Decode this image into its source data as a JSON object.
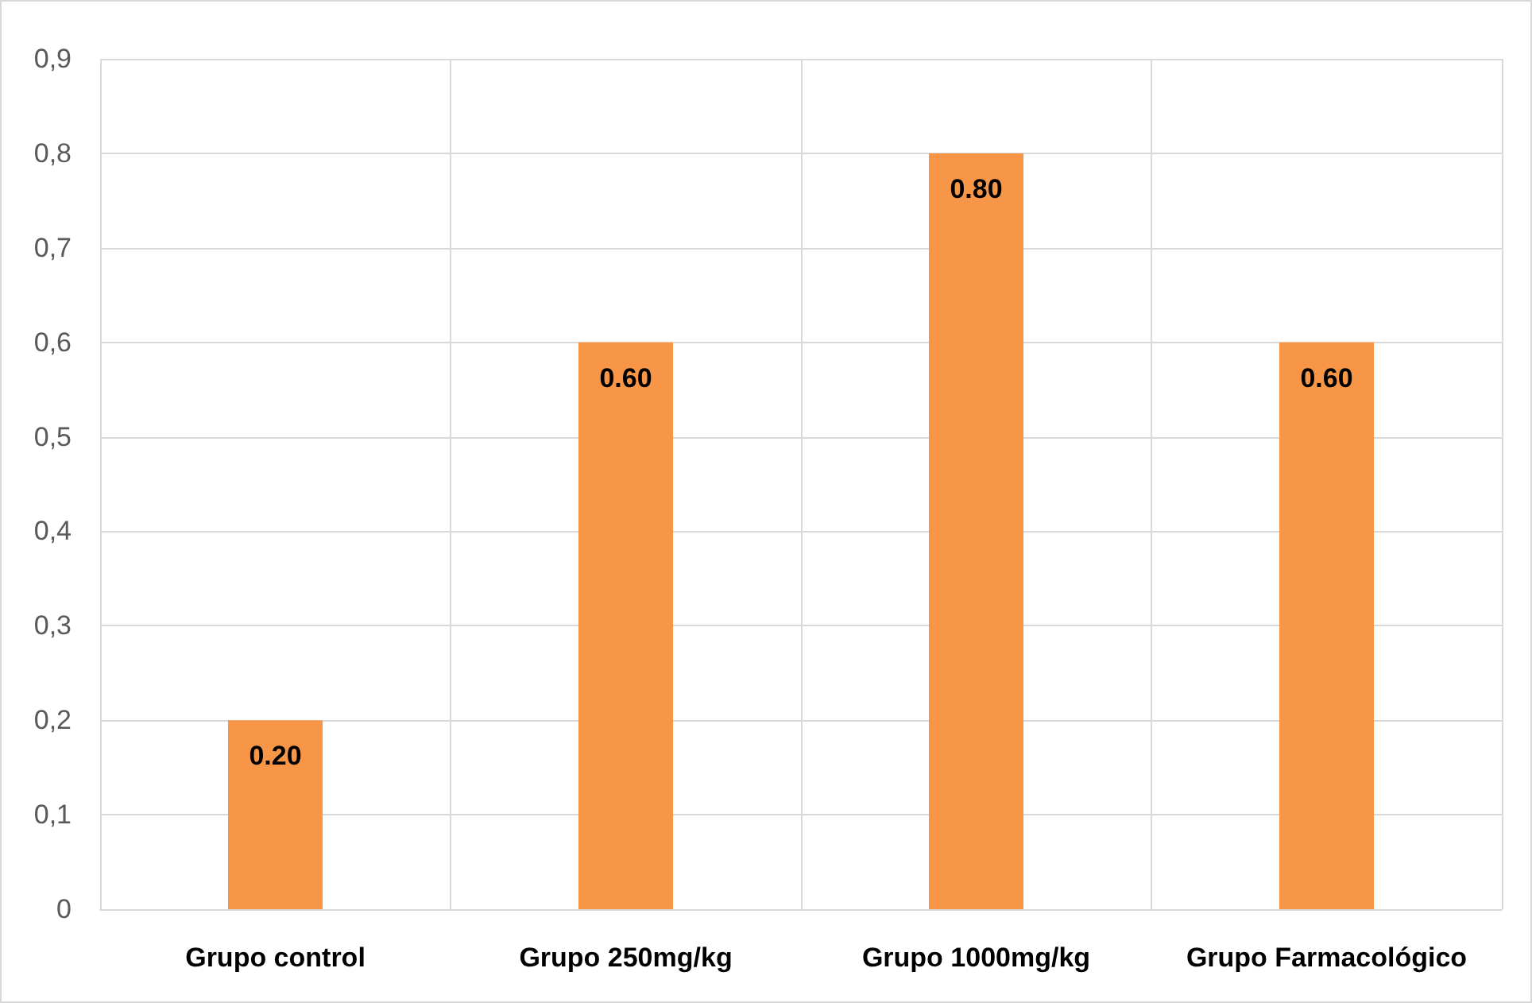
{
  "chart_data": {
    "type": "bar",
    "categories": [
      "Grupo control",
      "Grupo 250mg/kg",
      "Grupo 1000mg/kg",
      "Grupo Farmacológico"
    ],
    "values": [
      0.2,
      0.6,
      0.8,
      0.6
    ],
    "value_labels": [
      "0.20",
      "0.60",
      "0.80",
      "0.60"
    ],
    "color": "#f79646",
    "ylim": [
      0,
      0.9
    ],
    "yticks": [
      {
        "value": 0,
        "label": "0"
      },
      {
        "value": 0.1,
        "label": "0,1"
      },
      {
        "value": 0.2,
        "label": "0,2"
      },
      {
        "value": 0.3,
        "label": "0,3"
      },
      {
        "value": 0.4,
        "label": "0,4"
      },
      {
        "value": 0.5,
        "label": "0,5"
      },
      {
        "value": 0.6,
        "label": "0,6"
      },
      {
        "value": 0.7,
        "label": "0,7"
      },
      {
        "value": 0.8,
        "label": "0,8"
      },
      {
        "value": 0.9,
        "label": "0,9"
      }
    ],
    "grid": true
  }
}
